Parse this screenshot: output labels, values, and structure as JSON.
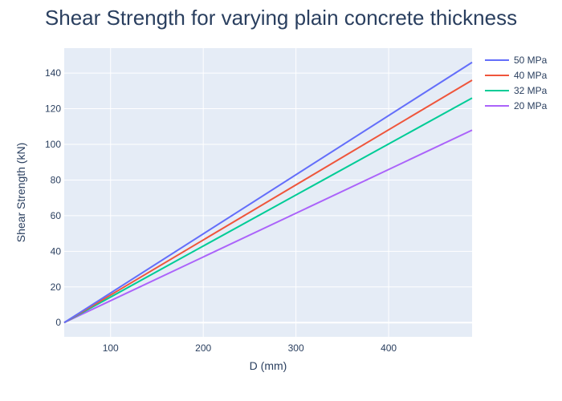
{
  "chart_data": {
    "type": "line",
    "title": "Shear Strength for varying plain concrete thickness",
    "xlabel": "D (mm)",
    "ylabel": "Shear Strength (kN)",
    "xlim": [
      50,
      490
    ],
    "ylim": [
      -8,
      154
    ],
    "xticks": [
      100,
      200,
      300,
      400
    ],
    "yticks": [
      0,
      20,
      40,
      60,
      80,
      100,
      120,
      140
    ],
    "grid": true,
    "legend_position": "top-right outside",
    "series": [
      {
        "name": "50 MPa",
        "color": "#636efa",
        "x": [
          50,
          490
        ],
        "y": [
          0,
          146
        ]
      },
      {
        "name": "40 MPa",
        "color": "#ef553b",
        "x": [
          50,
          490
        ],
        "y": [
          0,
          136
        ]
      },
      {
        "name": "32 MPa",
        "color": "#00cc96",
        "x": [
          50,
          490
        ],
        "y": [
          0,
          126
        ]
      },
      {
        "name": "20 MPa",
        "color": "#ab63fa",
        "x": [
          50,
          490
        ],
        "y": [
          0,
          108
        ]
      }
    ]
  }
}
